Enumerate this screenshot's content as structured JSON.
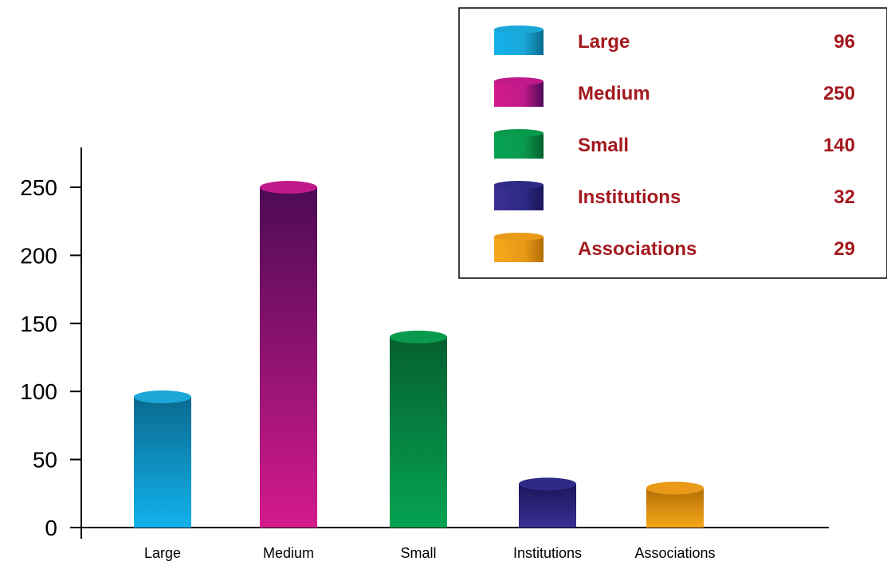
{
  "chart_data": {
    "type": "bar",
    "title": "",
    "xlabel": "",
    "ylabel": "",
    "categories": [
      "Large",
      "Medium",
      "Small",
      "Institutions",
      "Associations"
    ],
    "values": [
      96,
      250,
      140,
      32,
      29
    ],
    "ylim": [
      0,
      280
    ],
    "yticks": [
      0,
      50,
      100,
      150,
      200,
      250
    ],
    "grid": false,
    "legend_placement": "top-right",
    "legend": [
      {
        "label": "Large",
        "value": "96"
      },
      {
        "label": "Medium",
        "value": "250"
      },
      {
        "label": "Small",
        "value": "140"
      },
      {
        "label": "Institutions",
        "value": "32"
      },
      {
        "label": "Associations",
        "value": "29"
      }
    ],
    "colors": [
      {
        "top": "#0a6a8f",
        "bottom": "#12b2ec",
        "cap": "#1ba7d8"
      },
      {
        "top": "#4c0b56",
        "bottom": "#d41a8c",
        "cap": "#c01a8a"
      },
      {
        "top": "#05602e",
        "bottom": "#05a353",
        "cap": "#0a9a4d"
      },
      {
        "top": "#1a165a",
        "bottom": "#3a2f93",
        "cap": "#2f2a86"
      },
      {
        "top": "#b36d05",
        "bottom": "#f6a81a",
        "cap": "#e89a18"
      }
    ],
    "legend_text_color": "#a3191f"
  }
}
